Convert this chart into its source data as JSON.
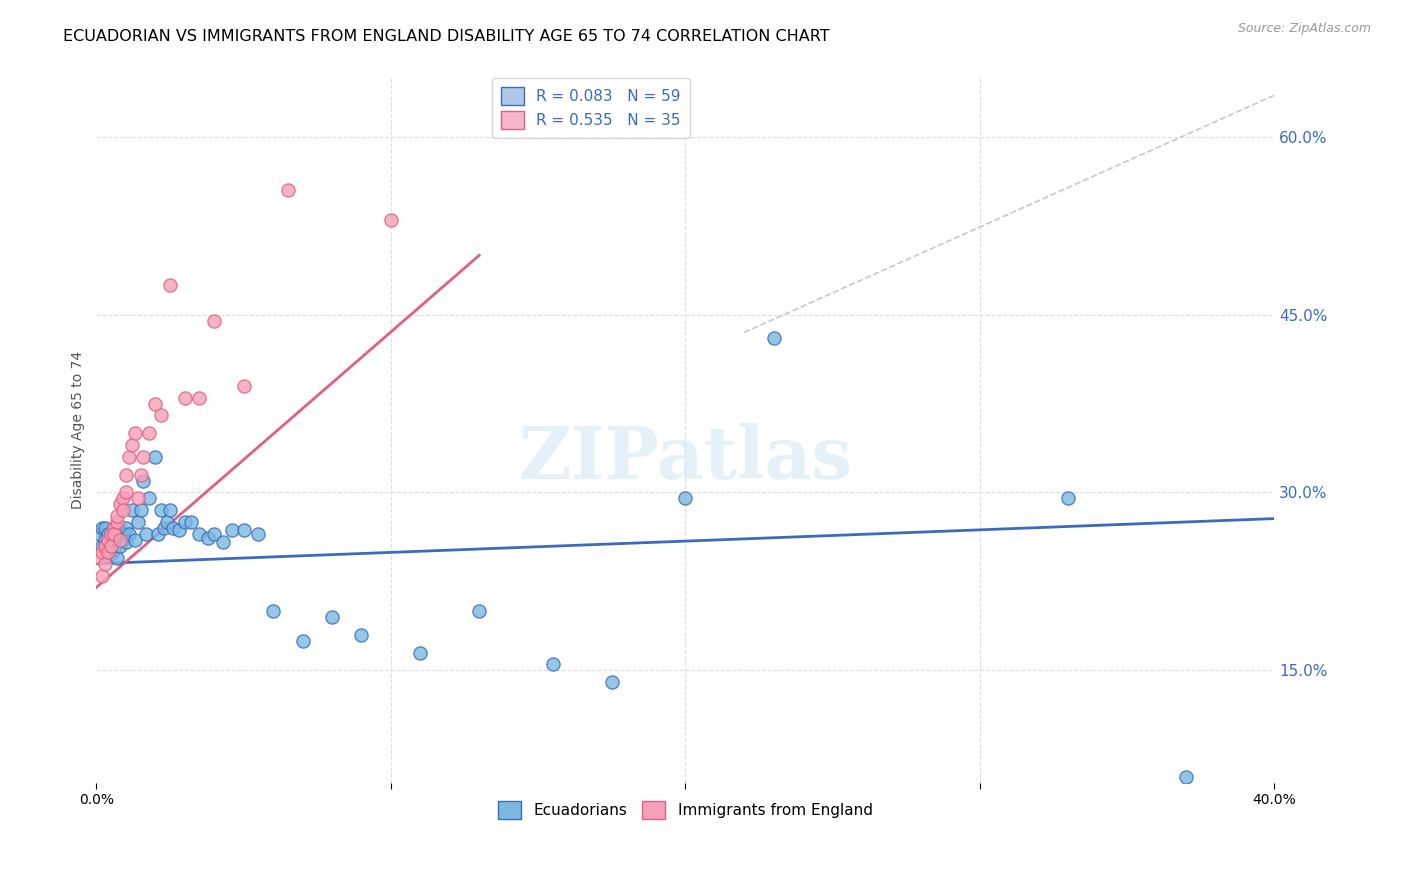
{
  "title": "ECUADORIAN VS IMMIGRANTS FROM ENGLAND DISABILITY AGE 65 TO 74 CORRELATION CHART",
  "source": "Source: ZipAtlas.com",
  "ylabel": "Disability Age 65 to 74",
  "watermark": "ZIPatlas",
  "legend1_label": "R = 0.083   N = 59",
  "legend2_label": "R = 0.535   N = 35",
  "legend_color1": "#aec6e8",
  "legend_color2": "#f4b8c8",
  "blue_scatter_x": [
    0.001,
    0.002,
    0.002,
    0.003,
    0.003,
    0.003,
    0.004,
    0.004,
    0.004,
    0.005,
    0.005,
    0.005,
    0.006,
    0.006,
    0.007,
    0.007,
    0.008,
    0.008,
    0.009,
    0.009,
    0.01,
    0.01,
    0.011,
    0.012,
    0.013,
    0.014,
    0.015,
    0.016,
    0.017,
    0.018,
    0.02,
    0.021,
    0.022,
    0.023,
    0.024,
    0.025,
    0.026,
    0.028,
    0.03,
    0.032,
    0.035,
    0.038,
    0.04,
    0.043,
    0.046,
    0.05,
    0.055,
    0.06,
    0.07,
    0.08,
    0.09,
    0.11,
    0.13,
    0.155,
    0.175,
    0.2,
    0.23,
    0.33,
    0.37
  ],
  "blue_scatter_y": [
    0.265,
    0.255,
    0.27,
    0.26,
    0.255,
    0.27,
    0.25,
    0.265,
    0.258,
    0.26,
    0.248,
    0.265,
    0.252,
    0.27,
    0.265,
    0.245,
    0.268,
    0.255,
    0.26,
    0.265,
    0.27,
    0.258,
    0.265,
    0.285,
    0.26,
    0.275,
    0.285,
    0.31,
    0.265,
    0.295,
    0.33,
    0.265,
    0.285,
    0.27,
    0.275,
    0.285,
    0.27,
    0.268,
    0.275,
    0.275,
    0.265,
    0.262,
    0.265,
    0.258,
    0.268,
    0.268,
    0.265,
    0.2,
    0.175,
    0.195,
    0.18,
    0.165,
    0.2,
    0.155,
    0.14,
    0.295,
    0.43,
    0.295,
    0.06
  ],
  "pink_scatter_x": [
    0.001,
    0.002,
    0.002,
    0.003,
    0.003,
    0.004,
    0.004,
    0.005,
    0.005,
    0.006,
    0.006,
    0.007,
    0.007,
    0.008,
    0.008,
    0.009,
    0.009,
    0.01,
    0.01,
    0.011,
    0.012,
    0.013,
    0.014,
    0.015,
    0.016,
    0.018,
    0.02,
    0.022,
    0.025,
    0.03,
    0.035,
    0.04,
    0.05,
    0.065,
    0.1
  ],
  "pink_scatter_y": [
    0.245,
    0.23,
    0.25,
    0.255,
    0.24,
    0.26,
    0.25,
    0.265,
    0.255,
    0.27,
    0.265,
    0.275,
    0.28,
    0.26,
    0.29,
    0.295,
    0.285,
    0.3,
    0.315,
    0.33,
    0.34,
    0.35,
    0.295,
    0.315,
    0.33,
    0.35,
    0.375,
    0.365,
    0.475,
    0.38,
    0.38,
    0.445,
    0.39,
    0.555,
    0.53
  ],
  "blue_line_x": [
    0.0,
    0.4
  ],
  "blue_line_y": [
    0.24,
    0.278
  ],
  "pink_line_x": [
    0.0,
    0.13
  ],
  "pink_line_y": [
    0.22,
    0.5
  ],
  "diagonal_line_x": [
    0.22,
    0.4
  ],
  "diagonal_line_y": [
    0.435,
    0.635
  ],
  "xlim": [
    0.0,
    0.4
  ],
  "ylim": [
    0.055,
    0.65
  ],
  "ytick_values": [
    0.15,
    0.3,
    0.45,
    0.6
  ],
  "ytick_labels": [
    "15.0%",
    "30.0%",
    "45.0%",
    "60.0%"
  ],
  "blue_color": "#7ab8e0",
  "pink_color": "#f4a0b8",
  "blue_line_color": "#3a6bbf",
  "pink_line_color": "#e06080",
  "diagonal_color": "#c8c8c8",
  "title_fontsize": 11.5,
  "axis_label_fontsize": 10,
  "tick_fontsize": 10,
  "legend_fontsize": 11,
  "source_fontsize": 9
}
